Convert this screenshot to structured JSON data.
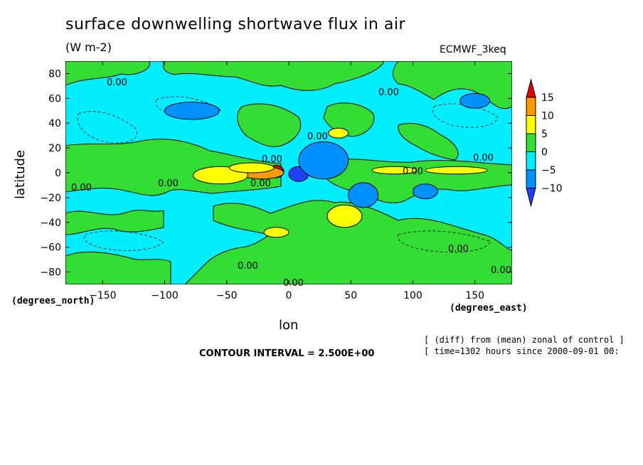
{
  "chart_data": {
    "type": "heatmap",
    "title": "surface downwelling shortwave flux in air",
    "units": "(W m-2)",
    "model_label": "ECMWF_3keq",
    "xlabel": "lon",
    "ylabel": "latitude",
    "x_unit_label": "(degrees_east)",
    "y_unit_label": "(degrees_north)",
    "xlim": [
      -180,
      180
    ],
    "ylim": [
      -90,
      90
    ],
    "x_ticks": [
      -150,
      -100,
      -50,
      0,
      50,
      100,
      150
    ],
    "y_ticks": [
      80,
      60,
      40,
      20,
      0,
      -20,
      -40,
      -60,
      -80
    ],
    "contour_interval_text": "CONTOUR INTERVAL = 2.500E+00",
    "note_lines": [
      "[ (diff) from (mean) zonal of control ]",
      "[ time=1302 hours since 2000-09-01 00:"
    ],
    "contour_labels": [
      "0.00",
      "0.00",
      "0.00",
      "0.00",
      "0.00",
      "0.00",
      "0.00",
      "0.00",
      "0.00",
      "0.00",
      "0.00",
      "0.00",
      "0.00"
    ],
    "colorbar": {
      "labels": [
        "15",
        "10",
        "5",
        "0",
        "-5",
        "-10"
      ],
      "colors": [
        "#e00000",
        "#ff9900",
        "#ffff00",
        "#33dd33",
        "#00eeff",
        "#0090ff",
        "#2040ff"
      ]
    },
    "regions": [
      {
        "level": -2,
        "lon": 8,
        "lat": -1,
        "dlon": 8,
        "dlat": 6
      },
      {
        "level": 3,
        "lon": -10,
        "lat": 1,
        "dlon": 6,
        "dlat": 5
      },
      {
        "level": 2,
        "lon": -22,
        "lat": 0,
        "dlon": 18,
        "dlat": 5
      },
      {
        "level": 1,
        "lon": -55,
        "lat": -2,
        "dlon": 22,
        "dlat": 7
      },
      {
        "level": 1,
        "lon": -30,
        "lat": 4,
        "dlon": 18,
        "dlat": 4
      },
      {
        "level": 1,
        "lon": 45,
        "lat": -35,
        "dlon": 14,
        "dlat": 9
      },
      {
        "level": 1,
        "lon": 40,
        "lat": 32,
        "dlon": 8,
        "dlat": 4
      },
      {
        "level": 1,
        "lon": 135,
        "lat": 2,
        "dlon": 25,
        "dlat": 3
      },
      {
        "level": 1,
        "lon": 85,
        "lat": 2,
        "dlon": 18,
        "dlat": 3
      },
      {
        "level": 1,
        "lon": -10,
        "lat": -48,
        "dlon": 10,
        "dlat": 4
      },
      {
        "level": 1,
        "lon": 60,
        "lat": -12,
        "dlon": 8,
        "dlat": 4
      },
      {
        "level": -1,
        "lon": 28,
        "lat": 10,
        "dlon": 20,
        "dlat": 15
      },
      {
        "level": -1,
        "lon": 60,
        "lat": -18,
        "dlon": 12,
        "dlat": 10
      },
      {
        "level": -1,
        "lon": -78,
        "lat": 50,
        "dlon": 22,
        "dlat": 7
      },
      {
        "level": -1,
        "lon": 150,
        "lat": 58,
        "dlon": 12,
        "dlat": 6
      },
      {
        "level": -1,
        "lon": 110,
        "lat": -15,
        "dlon": 10,
        "dlat": 6
      }
    ]
  }
}
